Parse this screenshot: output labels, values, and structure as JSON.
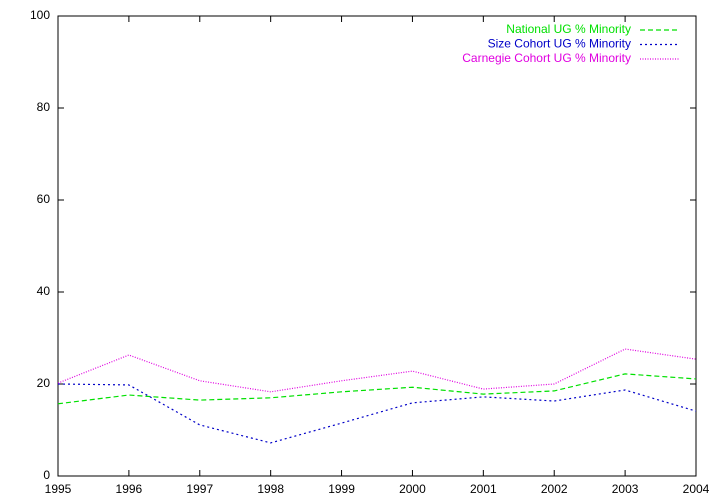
{
  "chart_data": {
    "type": "line",
    "x": [
      1995,
      1996,
      1997,
      1998,
      1999,
      2000,
      2001,
      2002,
      2003,
      2004
    ],
    "series": [
      {
        "name": "National UG % Minority",
        "color": "#00e000",
        "dash": "5,3",
        "values": [
          15.7,
          17.6,
          16.5,
          17.0,
          18.3,
          19.3,
          17.8,
          18.5,
          22.2,
          21.1
        ]
      },
      {
        "name": "Size Cohort UG % Minority",
        "color": "#0000c8",
        "dash": "2,3",
        "values": [
          20.0,
          19.8,
          11.1,
          7.2,
          11.5,
          15.9,
          17.2,
          16.3,
          18.7,
          14.1
        ]
      },
      {
        "name": "Carnegie Cohort UG % Minority",
        "color": "#e000e0",
        "dash": "1,1.5",
        "values": [
          20.2,
          26.3,
          20.7,
          18.3,
          20.7,
          22.8,
          18.9,
          20.0,
          27.6,
          25.4
        ]
      }
    ],
    "xlim": [
      1995,
      2004
    ],
    "xticks": [
      1995,
      1996,
      1997,
      1998,
      1999,
      2000,
      2001,
      2002,
      2003,
      2004
    ],
    "ylim": [
      0,
      100
    ],
    "yticks": [
      0,
      20,
      40,
      60,
      80,
      100
    ],
    "legend": "top-right"
  }
}
